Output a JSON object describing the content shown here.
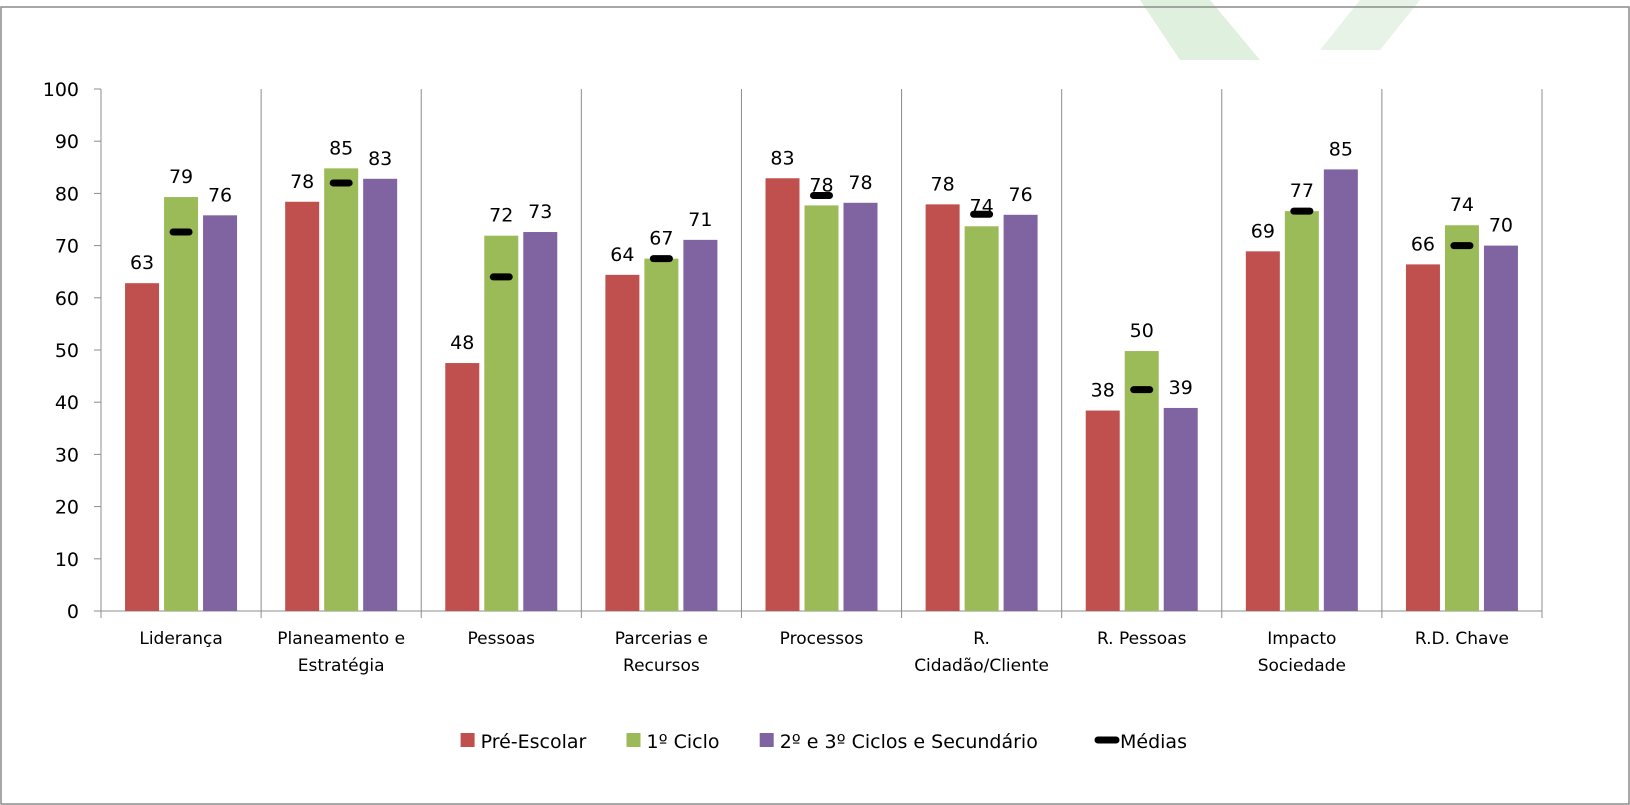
{
  "chart_data": {
    "type": "bar",
    "categories": [
      [
        "Liderança"
      ],
      [
        "Planeamento e",
        "Estratégia"
      ],
      [
        "Pessoas"
      ],
      [
        "Parcerias e",
        "Recursos"
      ],
      [
        "Processos"
      ],
      [
        "R.",
        "Cidadão/Cliente"
      ],
      [
        "R. Pessoas"
      ],
      [
        "Impacto",
        "Sociedade"
      ],
      [
        "R.D. Chave"
      ]
    ],
    "series": [
      {
        "name": "Pré-Escolar",
        "color": "#c0504d",
        "values": [
          63,
          78,
          48,
          64,
          83,
          78,
          38,
          69,
          66
        ],
        "raw": [
          62.8,
          78.4,
          47.5,
          64.4,
          82.9,
          77.9,
          38.4,
          68.9,
          66.4
        ]
      },
      {
        "name": "1º Ciclo",
        "color": "#9bbb59",
        "values": [
          79,
          85,
          72,
          67,
          78,
          74,
          50,
          77,
          74
        ],
        "raw": [
          79.3,
          84.8,
          71.9,
          67.5,
          77.7,
          73.7,
          49.8,
          76.6,
          73.9
        ]
      },
      {
        "name": "2º e 3º Ciclos e Secundário",
        "color": "#8064a2",
        "values": [
          76,
          83,
          73,
          71,
          78,
          76,
          39,
          85,
          70
        ],
        "raw": [
          75.8,
          82.8,
          72.6,
          71.1,
          78.2,
          75.9,
          38.9,
          84.6,
          70.0
        ]
      }
    ],
    "averages": {
      "name": "Médias",
      "color": "#000000",
      "values": [
        72.6,
        82.0,
        64.0,
        67.5,
        79.6,
        76.0,
        42.4,
        76.6,
        70.0
      ]
    },
    "ylim": [
      0,
      100
    ],
    "yticks": [
      0,
      10,
      20,
      30,
      40,
      50,
      60,
      70,
      80,
      90,
      100
    ],
    "title": "",
    "xlabel": "",
    "ylabel": "",
    "legend_position": "bottom",
    "grid": "vertical separators between categories"
  }
}
